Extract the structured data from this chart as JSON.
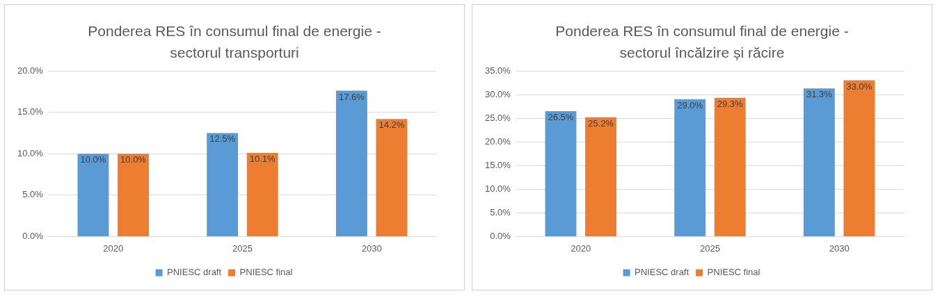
{
  "chart_data": [
    {
      "type": "bar",
      "title": "Ponderea RES în consumul final de energie - sectorul transporturi",
      "categories": [
        "2020",
        "2025",
        "2030"
      ],
      "series": [
        {
          "name": "PNIESC draft",
          "color": "#5b9bd5",
          "values": [
            10.0,
            12.5,
            17.6
          ],
          "value_labels": [
            "10.0%",
            "12.5%",
            "17.6%"
          ]
        },
        {
          "name": "PNIESC final",
          "color": "#ed7d31",
          "values": [
            10.0,
            10.1,
            14.2
          ],
          "value_labels": [
            "10.0%",
            "10.1%",
            "14.2%"
          ]
        }
      ],
      "ylim": [
        0,
        20
      ],
      "yticks": [
        {
          "value": 0,
          "label": "0.0%"
        },
        {
          "value": 5,
          "label": "5.0%"
        },
        {
          "value": 10,
          "label": "10.0%"
        },
        {
          "value": 15,
          "label": "15.0%"
        },
        {
          "value": 20,
          "label": "20.0%"
        }
      ],
      "grid": "y",
      "legend": "bottom"
    },
    {
      "type": "bar",
      "title": "Ponderea RES în consumul final de energie - sectorul încălzire și răcire",
      "categories": [
        "2020",
        "2025",
        "2030"
      ],
      "series": [
        {
          "name": "PNIESC draft",
          "color": "#5b9bd5",
          "values": [
            26.5,
            29.0,
            31.3
          ],
          "value_labels": [
            "26.5%",
            "29.0%",
            "31.3%"
          ]
        },
        {
          "name": "PNIESC final",
          "color": "#ed7d31",
          "values": [
            25.2,
            29.3,
            33.0
          ],
          "value_labels": [
            "25.2%",
            "29.3%",
            "33.0%"
          ]
        }
      ],
      "ylim": [
        0,
        35
      ],
      "yticks": [
        {
          "value": 0,
          "label": "0.0%"
        },
        {
          "value": 5,
          "label": "5.0%"
        },
        {
          "value": 10,
          "label": "10.0%"
        },
        {
          "value": 15,
          "label": "15.0%"
        },
        {
          "value": 20,
          "label": "20.0%"
        },
        {
          "value": 25,
          "label": "25.0%"
        },
        {
          "value": 30,
          "label": "30.0%"
        },
        {
          "value": 35,
          "label": "35.0%"
        }
      ],
      "grid": "y",
      "legend": "bottom"
    }
  ]
}
